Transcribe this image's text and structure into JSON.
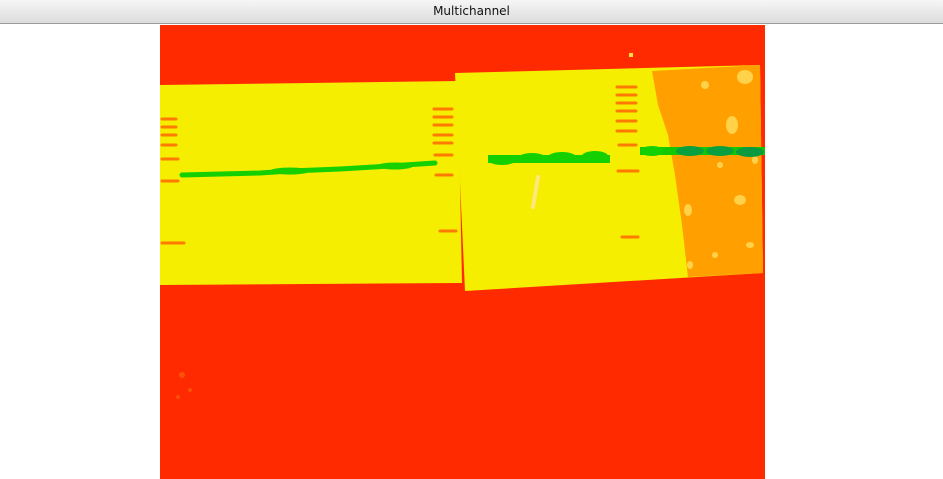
{
  "window": {
    "title": "Multichannel"
  },
  "image": {
    "description_icon": "multichannel-gel-image",
    "colors": {
      "background": "#ff2a00",
      "membrane": "#f8f000",
      "band": "#14d000",
      "band_dark": "#0aa040",
      "ladder": "#ff7a00",
      "smear": "#ffa000"
    }
  }
}
